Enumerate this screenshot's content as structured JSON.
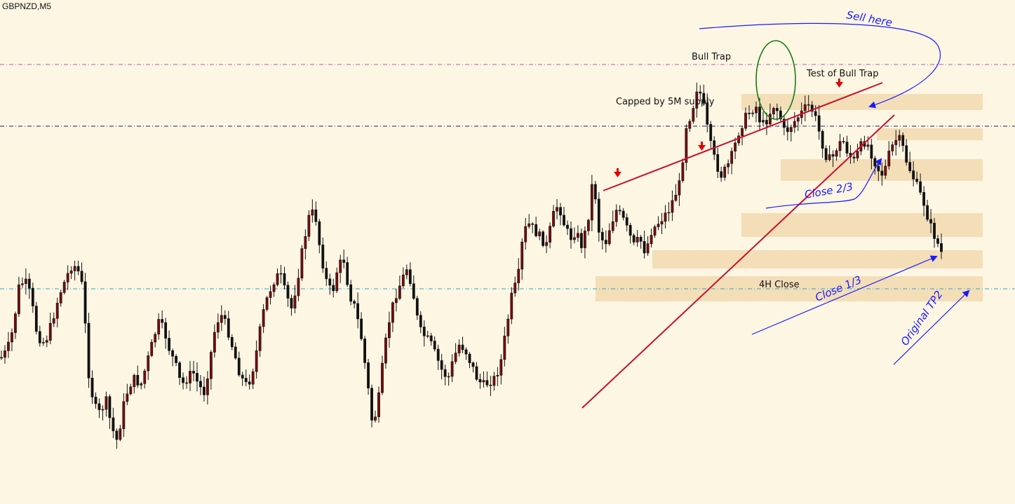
{
  "symbol_label": "GBPNZD,M5",
  "colors": {
    "background": "#fdf6e3",
    "candle": "#111111",
    "candle_fill": "#7a0a0a",
    "supply_zone": "#f3deb8",
    "trendline": "#c8102e",
    "annotation_blue": "#1a1aff",
    "circle": "#1a7a1a",
    "magenta_line": "#b05fb0",
    "navy_line": "#1b1b6e",
    "cyan_line": "#2aa7c9"
  },
  "annotations": {
    "bull_trap": "Bull Trap",
    "test_bull_trap": "Test of Bull Trap",
    "capped_supply": "Capped by 5M supply",
    "sell_here": "Sell here",
    "close_two_thirds": "Close 2/3",
    "close_one_third": "Close 1/3",
    "four_h_close": "4H Close",
    "original_tp2": "Original TP2"
  },
  "chart_data": {
    "type": "candlestick",
    "symbol": "GBPNZD",
    "timeframe": "M5",
    "title": "",
    "xlabel": "",
    "ylabel": "",
    "y_scale": "screen-relative (no price axis shown)",
    "grid": false,
    "close_path": [
      510,
      500,
      470,
      410,
      400,
      420,
      470,
      490,
      480,
      450,
      420,
      400,
      380,
      380,
      410,
      530,
      580,
      590,
      570,
      610,
      630,
      580,
      550,
      540,
      550,
      520,
      490,
      460,
      470,
      500,
      520,
      550,
      540,
      530,
      550,
      560,
      510,
      460,
      450,
      470,
      500,
      530,
      550,
      540,
      500,
      450,
      420,
      400,
      390,
      420,
      440,
      400,
      350,
      310,
      300,
      360,
      400,
      420,
      380,
      370,
      420,
      440,
      480,
      540,
      610,
      570,
      500,
      450,
      420,
      400,
      380,
      420,
      470,
      480,
      490,
      510,
      530,
      540,
      510,
      490,
      500,
      520,
      540,
      550,
      545,
      540,
      520,
      470,
      420,
      400,
      330,
      320,
      330,
      340,
      350,
      310,
      290,
      320,
      340,
      330,
      350,
      320,
      250,
      330,
      350,
      320,
      300,
      310,
      330,
      350,
      340,
      360,
      330,
      320,
      310,
      300,
      280,
      260,
      180,
      160,
      120,
      150,
      200,
      230,
      250,
      240,
      220,
      190,
      170,
      160,
      150,
      180,
      170,
      150,
      160,
      190,
      180,
      170,
      160,
      150,
      160,
      190,
      220,
      230,
      210,
      200,
      220,
      230,
      210,
      200,
      220,
      240,
      250,
      220,
      200,
      200,
      230,
      250,
      270,
      290,
      320,
      340,
      360
    ],
    "zones": [
      {
        "type": "supply",
        "level": "upper"
      },
      {
        "type": "supply",
        "level": "upper-mid"
      },
      {
        "type": "supply",
        "level": "mid"
      },
      {
        "type": "demand",
        "level": "mid-low"
      },
      {
        "type": "demand",
        "level": "low"
      },
      {
        "type": "4H Close",
        "level": "bottom"
      }
    ],
    "horizontal_lines": [
      "magenta-dashed",
      "navy-dashed",
      "cyan-dashed"
    ]
  }
}
